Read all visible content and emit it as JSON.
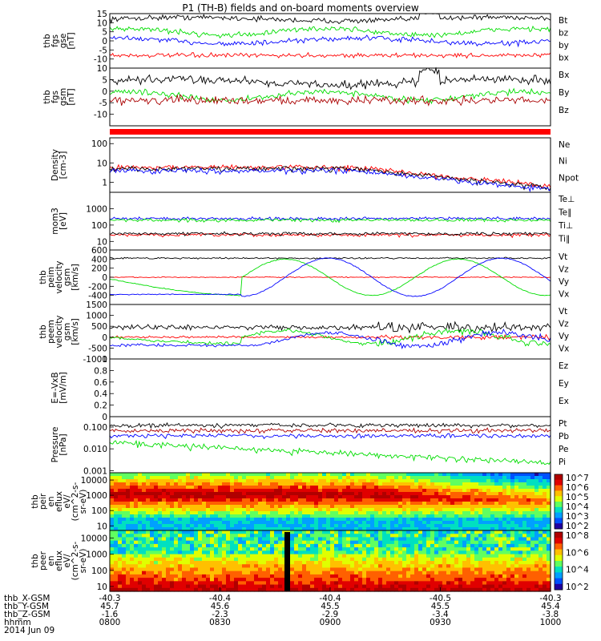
{
  "chart_data": {
    "type": "line",
    "title": "P1 (TH-B) fields and on-board moments overview",
    "panels": [
      {
        "id": "fgs_gse",
        "ylabel": [
          "thb",
          "fgs",
          "gse",
          "[nT]"
        ],
        "ylim": [
          -15,
          15
        ],
        "yticks": [
          15,
          10,
          5,
          0,
          -5,
          -10
        ],
        "series": [
          {
            "name": "Bt",
            "color": "#000000",
            "base": 12,
            "amp": 2.5,
            "noise": 1.2,
            "kind": "bt"
          },
          {
            "name": "bz",
            "color": "#ff0000",
            "base": -8,
            "amp": 1.5,
            "noise": 1.0,
            "kind": "flat"
          },
          {
            "name": "by",
            "color": "#00dd00",
            "base": 5,
            "amp": 3,
            "noise": 1.2,
            "kind": "wave"
          },
          {
            "name": "bx",
            "color": "#0000ff",
            "base": 0,
            "amp": 3,
            "noise": 1.2,
            "kind": "wave2"
          }
        ]
      },
      {
        "id": "fgs_gsm",
        "ylabel": [
          "thb",
          "fgs",
          "gsm",
          "[nT]"
        ],
        "ylim": [
          -15,
          10
        ],
        "yticks": [
          10,
          5,
          0,
          -5,
          -10
        ],
        "series": [
          {
            "name": "Bx",
            "color": "#000000",
            "base": 4,
            "amp": 3,
            "noise": 1.5,
            "kind": "bt"
          },
          {
            "name": "By",
            "color": "#00dd00",
            "base": -2,
            "amp": 3,
            "noise": 1.0,
            "kind": "wave"
          },
          {
            "name": "Bz",
            "color": "#aa0000",
            "base": -4,
            "amp": 1.5,
            "noise": 1.5,
            "kind": "flat"
          }
        ]
      },
      {
        "id": "density",
        "ylabel": [
          "Density",
          "[cm-3]"
        ],
        "log": true,
        "ylim": [
          0.3,
          200
        ],
        "yticks": [
          100,
          10,
          1
        ],
        "series": [
          {
            "name": "Ne",
            "color": "#ff0000",
            "base": 6,
            "kind": "decay"
          },
          {
            "name": "Ni",
            "color": "#000000",
            "base": 5,
            "kind": "decay"
          },
          {
            "name": "Npot",
            "color": "#0000ff",
            "base": 4,
            "kind": "decay"
          }
        ]
      },
      {
        "id": "temp",
        "ylabel": [
          "mom3",
          "[eV]"
        ],
        "log": true,
        "ylim": [
          3,
          10000
        ],
        "yticks": [
          1000,
          100,
          10
        ],
        "series": [
          {
            "name": "Te⊥",
            "color": "#ff0000",
            "base": 25,
            "kind": "flatlog"
          },
          {
            "name": "Te∥",
            "color": "#000000",
            "base": 30,
            "kind": "flatlog"
          },
          {
            "name": "Ti⊥",
            "color": "#0000ff",
            "base": 250,
            "kind": "flatlog"
          },
          {
            "name": "Ti∥",
            "color": "#00dd00",
            "base": 200,
            "kind": "flatlog"
          }
        ]
      },
      {
        "id": "peim_vel",
        "ylabel": [
          "thb",
          "peim",
          "velocity",
          "gsm",
          "[km/s]"
        ],
        "ylim": [
          -600,
          600
        ],
        "yticks": [
          600,
          400,
          200,
          0,
          -200,
          -400
        ],
        "series": [
          {
            "name": "Vt",
            "color": "#000000",
            "base": 420,
            "amp": 30,
            "noise": 15,
            "kind": "flat"
          },
          {
            "name": "Vz",
            "color": "#ff0000",
            "base": 0,
            "amp": 60,
            "noise": 8,
            "kind": "flat"
          },
          {
            "name": "Vy",
            "color": "#00dd00",
            "base": 0,
            "amp": 400,
            "noise": 8,
            "kind": "osc1"
          },
          {
            "name": "Vx",
            "color": "#0000ff",
            "base": 0,
            "amp": 420,
            "noise": 8,
            "kind": "osc2"
          }
        ]
      },
      {
        "id": "peem_vel",
        "ylabel": [
          "thb",
          "peem",
          "velocity",
          "gsm",
          "[km/s]"
        ],
        "ylim": [
          -1000,
          1500
        ],
        "yticks": [
          1500,
          1000,
          500,
          0,
          -500,
          -1000
        ],
        "series": [
          {
            "name": "Vt",
            "color": "#000000",
            "base": 450,
            "amp": 80,
            "noise": 90,
            "kind": "flat"
          },
          {
            "name": "Vz",
            "color": "#ff0000",
            "base": 0,
            "amp": 80,
            "noise": 40,
            "kind": "flat"
          },
          {
            "name": "Vy",
            "color": "#00dd00",
            "base": 0,
            "amp": 300,
            "noise": 60,
            "kind": "osc1"
          },
          {
            "name": "Vx",
            "color": "#0000ff",
            "base": -100,
            "amp": 300,
            "noise": 60,
            "kind": "osc2"
          }
        ]
      },
      {
        "id": "efield",
        "ylabel": [
          "E=-VxB",
          "[mV/m]"
        ],
        "ylim": [
          0,
          1
        ],
        "yticks": [
          1.0,
          0.8,
          0.6,
          0.4,
          0.2,
          0.0
        ],
        "series": [
          {
            "name": "Ez",
            "color": "#ff0000",
            "empty": true
          },
          {
            "name": "Ey",
            "color": "#00dd00",
            "empty": true
          },
          {
            "name": "Ex",
            "color": "#0000ff",
            "empty": true
          }
        ]
      },
      {
        "id": "pressure",
        "ylabel": [
          "Pressure",
          "[nPa]"
        ],
        "log": true,
        "ylim": [
          0.0008,
          0.3
        ],
        "yticks": [
          0.1,
          0.01,
          0.001
        ],
        "yticklabels": [
          "0.100",
          "0.010",
          "0.001"
        ],
        "series": [
          {
            "name": "Pt",
            "color": "#000000",
            "base": 0.12,
            "kind": "flatlog"
          },
          {
            "name": "Pb",
            "color": "#aa0000",
            "base": 0.07,
            "kind": "flatlog"
          },
          {
            "name": "Pe",
            "color": "#00dd00",
            "base": 0.02,
            "kind": "declog"
          },
          {
            "name": "Pi",
            "color": "#0000ff",
            "base": 0.04,
            "kind": "flatlog"
          }
        ]
      },
      {
        "id": "peir_spec",
        "type": "heatmap",
        "ylabel": [
          "thb",
          "peir",
          "en",
          "eflux",
          "eV/",
          "(cm^2-s-",
          "sr-eV)"
        ],
        "log": true,
        "ylim": [
          5,
          30000
        ],
        "yticks": [
          10000,
          1000,
          100,
          10
        ],
        "colorbar": [
          "10^7",
          "10^6",
          "10^5",
          "10^4",
          "10^3",
          "10^2"
        ]
      },
      {
        "id": "peer_spec",
        "type": "heatmap",
        "ylabel": [
          "thb",
          "peer",
          "en",
          "eflux",
          "eV/",
          "(cm^2-s-",
          "sr-eV)"
        ],
        "log": true,
        "ylim": [
          5,
          30000
        ],
        "yticks": [
          10000,
          1000,
          100,
          10
        ],
        "colorbar": [
          "10^8",
          "10^6",
          "10^4",
          "10^2"
        ]
      }
    ],
    "xaxis": {
      "rows": [
        {
          "label": "thb_X-GSM",
          "values": [
            "-40.3",
            "-40.4",
            "-40.4",
            "-40.5",
            "-40.3"
          ]
        },
        {
          "label": "thb_Y-GSM",
          "values": [
            "45.7",
            "45.6",
            "45.5",
            "45.5",
            "45.4"
          ]
        },
        {
          "label": "thb_Z-GSM",
          "values": [
            "-1.6",
            "-2.3",
            "-2.9",
            "-3.4",
            "-3.8"
          ]
        },
        {
          "label": "hhmm",
          "values": [
            "0800",
            "0830",
            "0900",
            "0930",
            "1000"
          ]
        }
      ],
      "date": "2014 Jun 09"
    }
  }
}
